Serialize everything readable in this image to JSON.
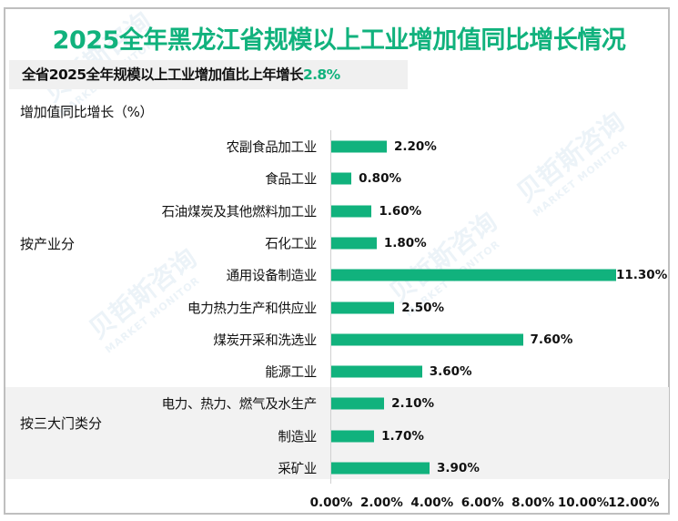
{
  "title": "2025全年黑龙江省规模以上工业增加值同比增长情况",
  "subtitle": {
    "text": "全省2025全年规模以上工业增加值比上年增长",
    "highlight": "2.8%"
  },
  "watermark": {
    "cn": "贝哲斯咨询",
    "en": "MARKET MONITOR"
  },
  "colors": {
    "accent": "#11b27d",
    "band": "#f2f2f2",
    "border": "#bfbfbf"
  },
  "groups": [
    {
      "label": "按产业分"
    },
    {
      "label": "按三大门类分"
    }
  ],
  "chart_data": {
    "type": "bar",
    "orientation": "horizontal",
    "title": "2025全年黑龙江省规模以上工业增加值同比增长情况",
    "subtitle": "全省2025全年规模以上工业增加值比上年增长2.8%",
    "ylabel": "增加值同比增长（%）",
    "xlabel": "",
    "xlim": [
      0,
      12
    ],
    "x_ticks": [
      "0.00%",
      "2.00%",
      "4.00%",
      "6.00%",
      "8.00%",
      "10.00%",
      "12.00%"
    ],
    "grid": false,
    "legend": null,
    "categories": [
      "农副食品加工业",
      "食品工业",
      "石油煤炭及其他燃料加工业",
      "石化工业",
      "通用设备制造业",
      "电力热力生产和供应业",
      "煤炭开采和洗选业",
      "能源工业",
      "电力、热力、燃气及水生产",
      "制造业",
      "采矿业"
    ],
    "category_groups": [
      "按产业分",
      "按产业分",
      "按产业分",
      "按产业分",
      "按产业分",
      "按产业分",
      "按产业分",
      "按产业分",
      "按三大门类分",
      "按三大门类分",
      "按三大门类分"
    ],
    "values": [
      2.2,
      0.8,
      1.6,
      1.8,
      11.3,
      2.5,
      7.6,
      3.6,
      2.1,
      1.7,
      3.9
    ],
    "value_labels": [
      "2.20%",
      "0.80%",
      "1.60%",
      "1.80%",
      "11.30%",
      "2.50%",
      "7.60%",
      "3.60%",
      "2.10%",
      "1.70%",
      "3.90%"
    ]
  }
}
